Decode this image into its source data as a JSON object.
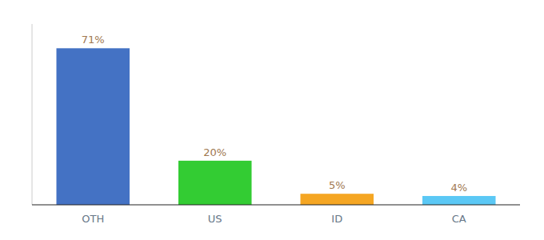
{
  "chart_data": {
    "type": "bar",
    "categories": [
      "OTH",
      "US",
      "ID",
      "CA"
    ],
    "values": [
      71,
      20,
      5,
      4
    ],
    "colors": [
      "#4472c4",
      "#33cc33",
      "#f5a623",
      "#5bc8f5"
    ],
    "value_labels": [
      "71%",
      "20%",
      "5%",
      "4%"
    ],
    "data_labels": true,
    "ylim": [
      0,
      82
    ],
    "tick_labels": "x"
  }
}
